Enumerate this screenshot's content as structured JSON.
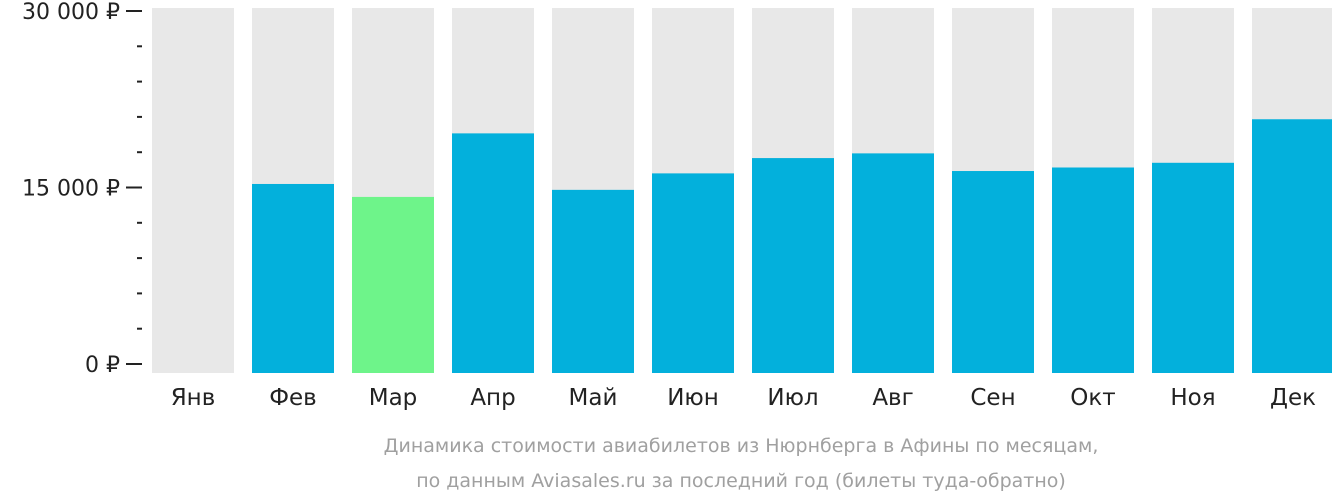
{
  "chart_data": {
    "type": "bar",
    "title": "",
    "xlabel": "",
    "ylabel": "",
    "ylim": [
      0,
      30000
    ],
    "yticks": [
      {
        "value": 0,
        "label": "0 ₽"
      },
      {
        "value": 15000,
        "label": "15 000 ₽"
      },
      {
        "value": 30000,
        "label": "30 000 ₽"
      }
    ],
    "minor_tick_step": 3000,
    "categories": [
      "Янв",
      "Фев",
      "Мар",
      "Апр",
      "Май",
      "Июн",
      "Июл",
      "Авг",
      "Сен",
      "Окт",
      "Ноя",
      "Дек"
    ],
    "values": [
      null,
      15300,
      14200,
      19600,
      14800,
      16200,
      17500,
      17900,
      16400,
      16700,
      17100,
      20800
    ],
    "highlight_index": 2,
    "colors": {
      "bar": "#03b0dc",
      "highlight": "#6ef48a",
      "background_column": "#e8e8e8",
      "axis": "#222222"
    },
    "grid": false,
    "legend": "none"
  },
  "caption": {
    "line1": "Динамика стоимости авиабилетов из Нюрнберга в Афины по месяцам,",
    "line2": "по данным Aviasales.ru за последний год (билеты туда-обратно)"
  }
}
